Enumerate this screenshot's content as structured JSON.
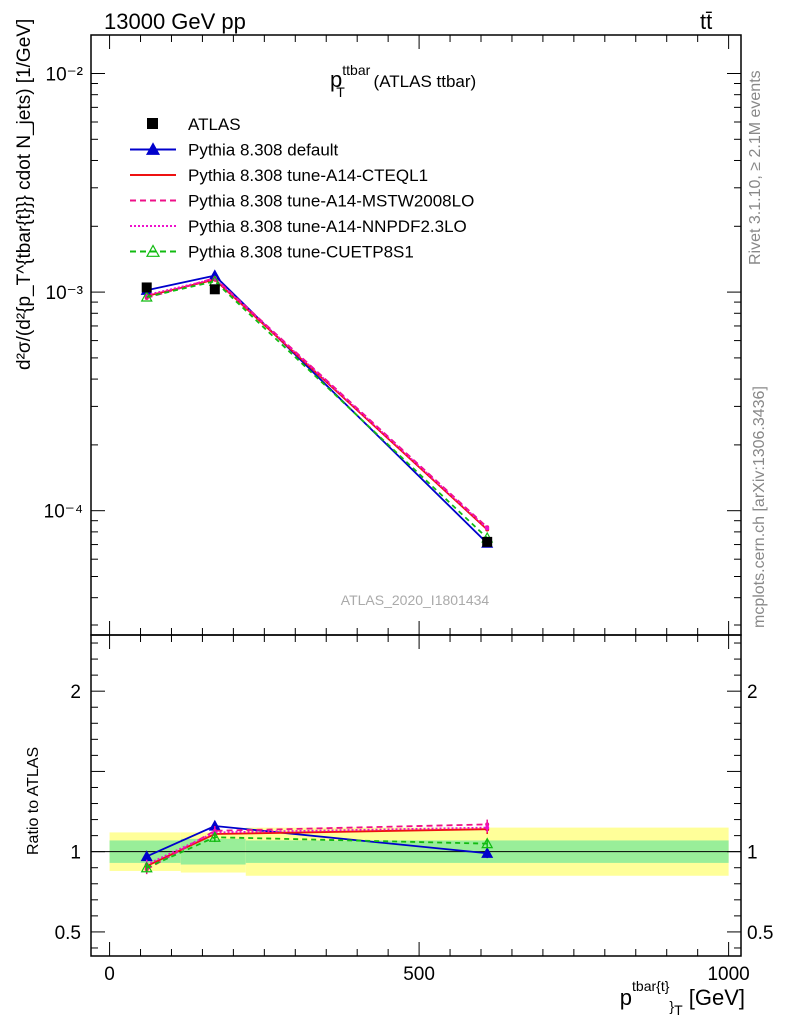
{
  "header": {
    "left": "13000 GeV pp",
    "right": "tt̄"
  },
  "side_texts": {
    "rivet": "Rivet 3.1.10, ≥ 2.1M events",
    "mcplots": "mcplots.cern.ch [arXiv:1306.3436]"
  },
  "analysis_id": "ATLAS_2020_I1801434",
  "plot_title": {
    "main": "p",
    "sup": "ttbar",
    "sub": "T",
    "rest": " (ATLAS ttbar)"
  },
  "ylabel_main": "d²σ/(d²{p_T^{tbar{t}}} cdot N_jets) [1/GeV]",
  "ylabel_ratio": "Ratio to ATLAS",
  "xlabel": {
    "p": "p",
    "sup": "tbar{t}",
    "sub": "}",
    "subT": "T",
    "unit": " [GeV]"
  },
  "legend": [
    {
      "label": "ATLAS",
      "color": "#000000",
      "style": "marker-square"
    },
    {
      "label": "Pythia 8.308 default",
      "color": "#0000cc",
      "style": "solid-triangle"
    },
    {
      "label": "Pythia 8.308 tune-A14-CTEQL1",
      "color": "#ee1111",
      "style": "solid"
    },
    {
      "label": "Pythia 8.308 tune-A14-MSTW2008LO",
      "color": "#ee1188",
      "style": "dashed"
    },
    {
      "label": "Pythia 8.308 tune-A14-NNPDF2.3LO",
      "color": "#ee11cc",
      "style": "dotted"
    },
    {
      "label": "Pythia 8.308 tune-CUETP8S1",
      "color": "#11bb11",
      "style": "dashed-open-triangle"
    }
  ],
  "chart_data": {
    "type": "line",
    "x": [
      60,
      170,
      610
    ],
    "bins": [
      [
        0,
        115
      ],
      [
        115,
        220
      ],
      [
        220,
        1000
      ]
    ],
    "xlim": [
      -30,
      1020
    ],
    "ylim_main": [
      2.7e-05,
      0.015
    ],
    "yscale_main": "log",
    "ylim_ratio": [
      0.35,
      2.35
    ],
    "yticks_main": [
      "10⁻²",
      "10⁻³",
      "10⁻⁴"
    ],
    "yticks_ratio": [
      "0.5",
      "1",
      "2"
    ],
    "xticks": [
      "0",
      "500",
      "1000"
    ],
    "data": {
      "name": "ATLAS",
      "values": [
        0.00105,
        0.00103,
        7.2e-05
      ]
    },
    "band_stat": [
      [
        0.93,
        1.07
      ],
      [
        0.92,
        1.08
      ],
      [
        0.93,
        1.07
      ]
    ],
    "band_total": [
      [
        0.88,
        1.12
      ],
      [
        0.87,
        1.12
      ],
      [
        0.85,
        1.15
      ]
    ],
    "series": [
      {
        "name": "Pythia 8.308 default",
        "color": "#0000cc",
        "values": [
          0.00102,
          0.00119,
          7.1e-05
        ],
        "ratio": [
          0.97,
          1.16,
          0.99
        ]
      },
      {
        "name": "Pythia 8.308 tune-A14-CTEQL1",
        "color": "#ee1111",
        "values": [
          0.00096,
          0.00114,
          8.2e-05
        ],
        "ratio": [
          0.91,
          1.11,
          1.14
        ]
      },
      {
        "name": "Pythia 8.308 tune-A14-MSTW2008LO",
        "color": "#ee1188",
        "values": [
          0.00094,
          0.00116,
          8.4e-05
        ],
        "ratio": [
          0.89,
          1.13,
          1.17
        ]
      },
      {
        "name": "Pythia 8.308 tune-A14-NNPDF2.3LO",
        "color": "#ee11cc",
        "values": [
          0.00097,
          0.00115,
          8.3e-05
        ],
        "ratio": [
          0.92,
          1.12,
          1.15
        ]
      },
      {
        "name": "Pythia 8.308 tune-CUETP8S1",
        "color": "#11bb11",
        "values": [
          0.00095,
          0.00112,
          7.5e-05
        ],
        "ratio": [
          0.9,
          1.09,
          1.05
        ]
      }
    ]
  }
}
